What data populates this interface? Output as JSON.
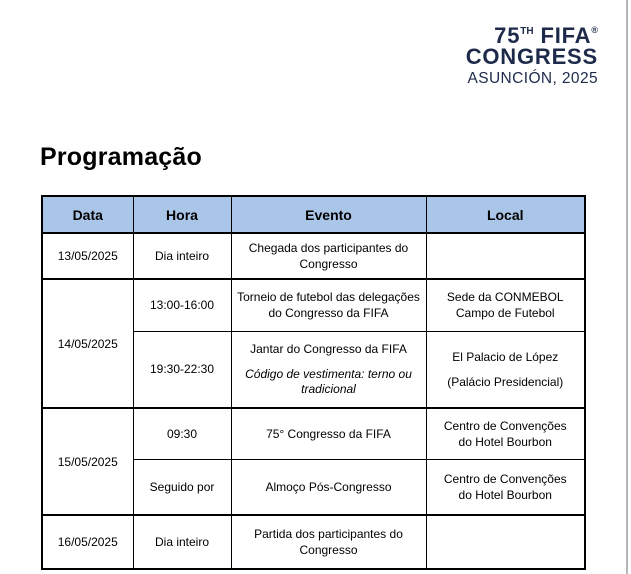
{
  "logo": {
    "number": "75",
    "ordinal": "TH",
    "brand": " FIFA",
    "registered": "®",
    "line2": "CONGRESS",
    "line3": "ASUNCIÓN, 2025",
    "color": "#1d2a4a"
  },
  "page_title": "Programação",
  "table": {
    "header_bg": "#a9c5e8",
    "border_color": "#000000",
    "columns": [
      "Data",
      "Hora",
      "Evento",
      "Local"
    ],
    "groups": [
      {
        "date": "13/05/2025",
        "events": [
          {
            "hora": "Dia inteiro",
            "evento_lines": [
              "Chegada dos participantes do",
              "Congresso"
            ],
            "nota_lines": [],
            "local_lines": [],
            "local_spaced": false
          }
        ]
      },
      {
        "date": "14/05/2025",
        "events": [
          {
            "hora": "13:00-16:00",
            "evento_lines": [
              "Torneio de futebol das delegações",
              "do Congresso da FIFA"
            ],
            "nota_lines": [],
            "local_lines": [
              "Sede da CONMEBOL",
              "Campo de Futebol"
            ],
            "local_spaced": false
          },
          {
            "hora": "19:30-22:30",
            "evento_lines": [
              "Jantar do Congresso da FIFA"
            ],
            "nota_lines": [
              "Código de vestimenta: terno ou",
              "tradicional"
            ],
            "local_lines": [
              "El Palacio de López",
              "(Palácio Presidencial)"
            ],
            "local_spaced": true
          }
        ]
      },
      {
        "date": "15/05/2025",
        "events": [
          {
            "hora": "09:30",
            "evento_lines": [
              "75° Congresso da FIFA"
            ],
            "nota_lines": [],
            "local_lines": [
              "Centro de Convenções",
              "do Hotel Bourbon"
            ],
            "local_spaced": false
          },
          {
            "hora": "Seguido por",
            "evento_lines": [
              "Almoço Pós-Congresso"
            ],
            "nota_lines": [],
            "local_lines": [
              "Centro de Convenções",
              "do Hotel Bourbon"
            ],
            "local_spaced": false
          }
        ]
      },
      {
        "date": "16/05/2025",
        "events": [
          {
            "hora": "Dia inteiro",
            "evento_lines": [
              "Partida dos participantes do",
              "Congresso"
            ],
            "nota_lines": [],
            "local_lines": [],
            "local_spaced": false
          }
        ]
      }
    ]
  }
}
